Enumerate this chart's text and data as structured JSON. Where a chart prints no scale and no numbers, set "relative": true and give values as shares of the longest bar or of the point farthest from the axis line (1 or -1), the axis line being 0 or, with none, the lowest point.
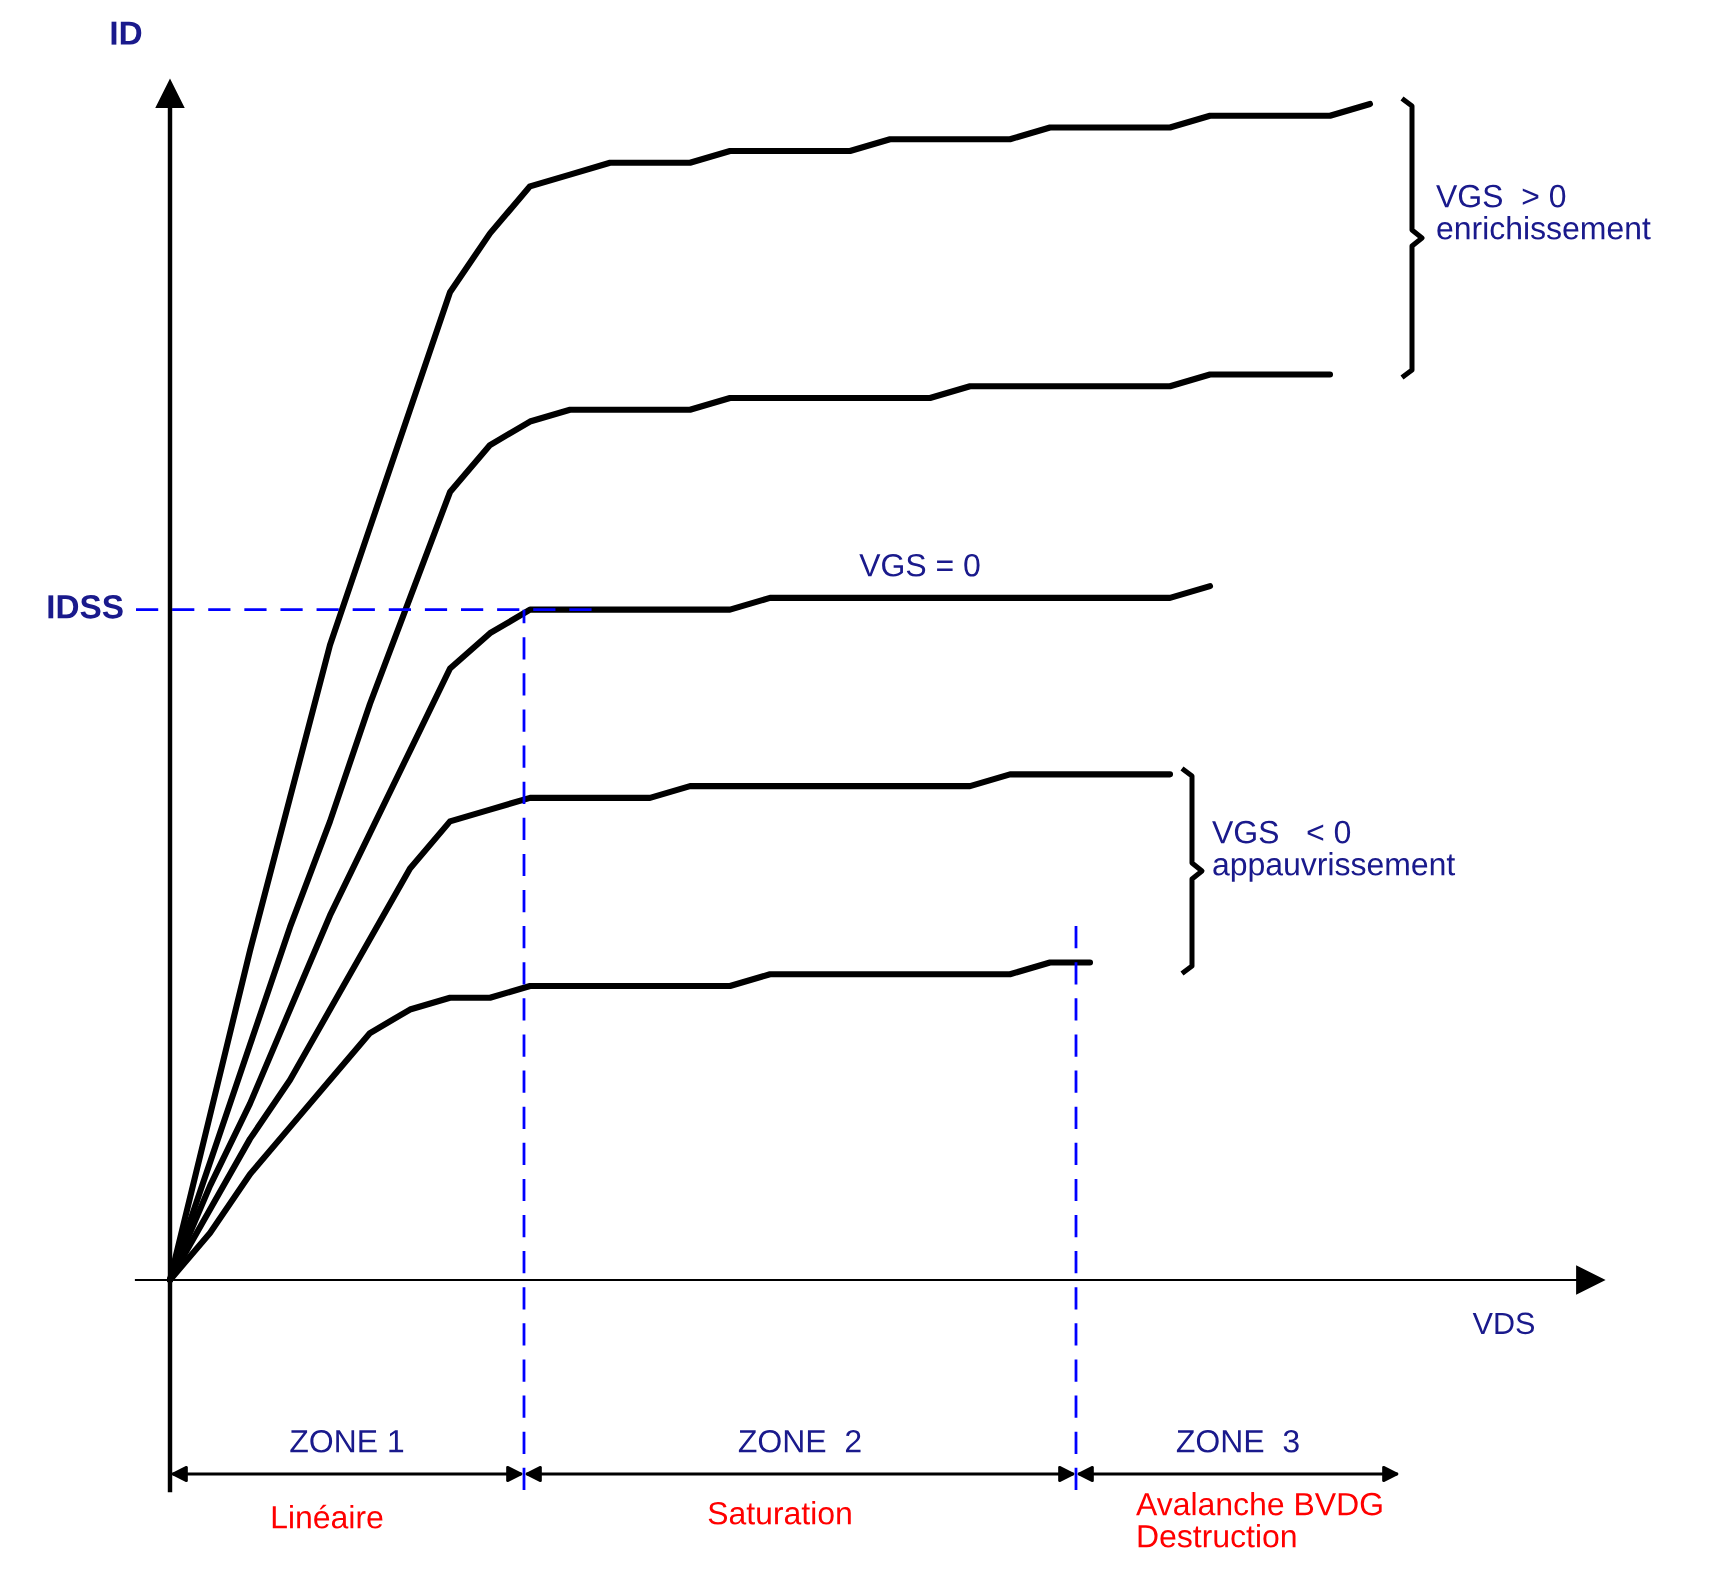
{
  "chart_data": {
    "type": "line",
    "relative": true,
    "xlabel": "VDS",
    "ylabel": "ID",
    "categories": [
      null,
      null,
      null,
      null,
      null,
      null,
      null,
      null,
      null,
      null,
      null,
      null,
      null,
      null,
      null,
      null,
      null,
      null,
      null,
      null,
      null,
      null,
      null,
      null,
      null,
      null,
      null,
      null,
      null,
      null,
      null
    ],
    "series": [
      {
        "color": "#000000",
        "values": [
          0,
          0.14,
          0.28,
          0.41,
          0.54,
          0.64,
          0.74,
          0.84,
          0.89,
          0.93,
          0.94,
          0.95,
          0.95,
          0.95,
          0.96,
          0.96,
          0.96,
          0.96,
          0.97,
          0.97,
          0.97,
          0.97,
          0.98,
          0.98,
          0.98,
          0.98,
          0.99,
          0.99,
          0.99,
          0.99,
          1.0
        ]
      },
      {
        "color": "#000000",
        "values": [
          0,
          0.1,
          0.2,
          0.3,
          0.39,
          0.49,
          0.58,
          0.67,
          0.71,
          0.73,
          0.74,
          0.74,
          0.74,
          0.74,
          0.75,
          0.75,
          0.75,
          0.75,
          0.75,
          0.75,
          0.76,
          0.76,
          0.76,
          0.76,
          0.76,
          0.76,
          0.77,
          0.77,
          0.77,
          0.77,
          null
        ]
      },
      {
        "color": "#000000",
        "values": [
          0,
          0.08,
          0.15,
          0.23,
          0.31,
          0.38,
          0.45,
          0.52,
          0.55,
          0.57,
          0.57,
          0.57,
          0.57,
          0.57,
          0.57,
          0.58,
          0.58,
          0.58,
          0.58,
          0.58,
          0.58,
          0.58,
          0.58,
          0.58,
          0.58,
          0.58,
          0.59,
          null,
          null,
          null,
          null
        ]
      },
      {
        "color": "#000000",
        "values": [
          0,
          0.06,
          0.12,
          0.17,
          0.23,
          0.29,
          0.35,
          0.39,
          0.4,
          0.41,
          0.41,
          0.41,
          0.41,
          0.42,
          0.42,
          0.42,
          0.42,
          0.42,
          0.42,
          0.42,
          0.42,
          0.43,
          0.43,
          0.43,
          0.43,
          0.43,
          null,
          null,
          null,
          null,
          null
        ]
      },
      {
        "color": "#000000",
        "values": [
          0,
          0.04,
          0.09,
          0.13,
          0.17,
          0.21,
          0.23,
          0.24,
          0.24,
          0.25,
          0.25,
          0.25,
          0.25,
          0.25,
          0.25,
          0.26,
          0.26,
          0.26,
          0.26,
          0.26,
          0.26,
          0.26,
          0.27,
          0.27,
          null,
          null,
          null,
          null,
          null,
          null,
          null
        ]
      }
    ],
    "ref_lines": [
      {
        "axis": "y",
        "value": 0.57,
        "label": "IDSS",
        "color": "#0000ff",
        "line_style": "dashed"
      }
    ],
    "annotations": [
      "VGS  > 0\nenrichissement",
      "VGS = 0",
      "VGS   < 0\nappauvrissement",
      "ZONE 1",
      "Linéaire",
      "ZONE  2",
      "Saturation",
      "ZONE  3",
      "Avalanche BVDG\nDestruction"
    ],
    "legend": false,
    "line_style": "solid",
    "marker": "none"
  }
}
